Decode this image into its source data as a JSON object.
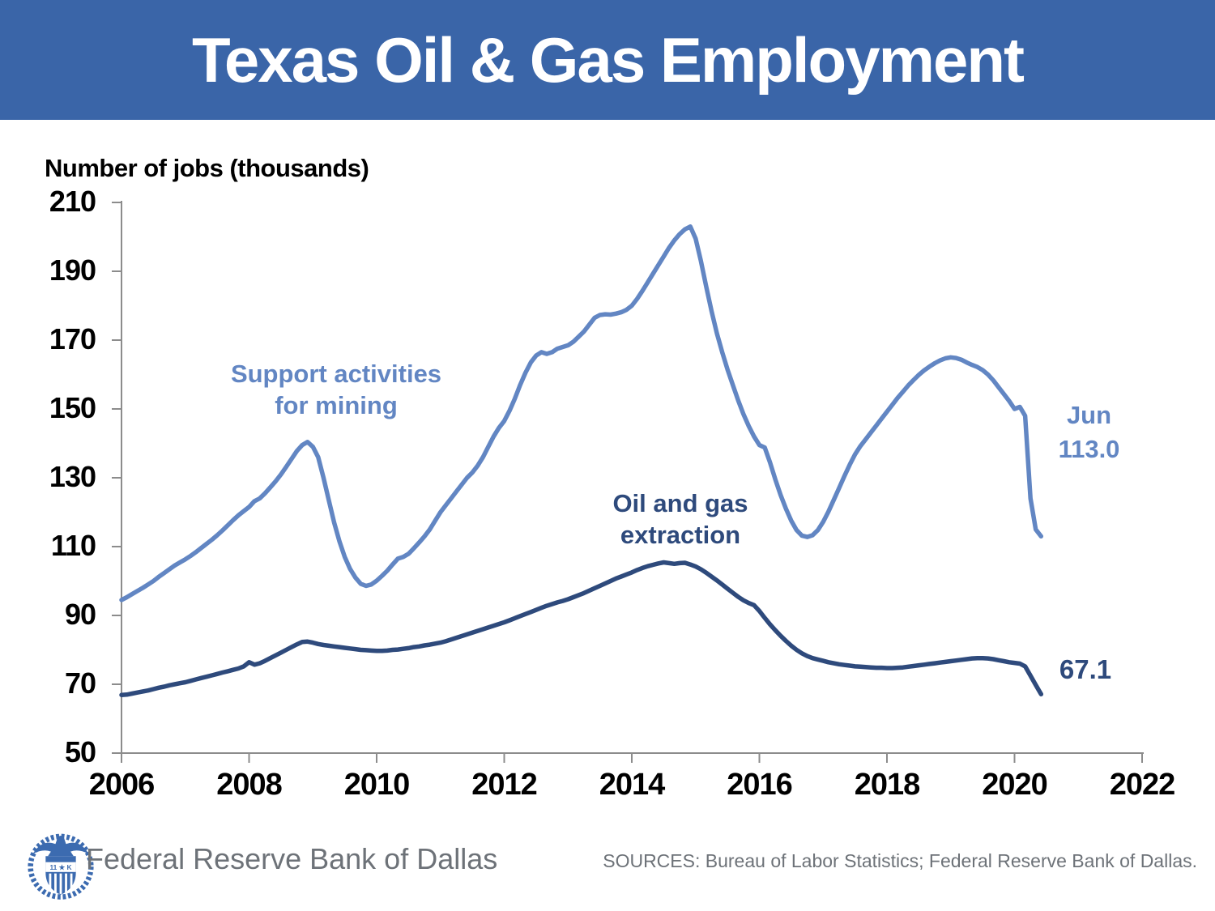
{
  "title": "Texas Oil & Gas Employment",
  "axis_title": "Number of jobs (thousands)",
  "colors": {
    "banner_blue": "#3a65a8",
    "support_line": "#6286c3",
    "extraction_line": "#2e4a7c",
    "axis_gray": "#8c8c8c",
    "tick_label_black": "#000000",
    "footer_gray": "#6d7278",
    "logo_blue": "#3c6bb0"
  },
  "chart_data": {
    "type": "line",
    "title": "Texas Oil & Gas Employment",
    "xlabel": "",
    "ylabel": "Number of jobs (thousands)",
    "xlim": [
      2006,
      2022
    ],
    "ylim": [
      50,
      210
    ],
    "grid": false,
    "legend_position": "inline-annotations",
    "x_ticks": [
      2006,
      2008,
      2010,
      2012,
      2014,
      2016,
      2018,
      2020,
      2022
    ],
    "y_ticks": [
      210,
      190,
      170,
      150,
      130,
      110,
      90,
      70,
      50
    ],
    "x_start_year": 2006,
    "points_per_year": 12,
    "x_end_label": "Jun 2020",
    "series": [
      {
        "name": "Support activities for mining",
        "label_line1": "Support activities",
        "label_line2": "for mining",
        "end_label_line1": "Jun",
        "end_label_line2": "113.0",
        "last_value": 113.0,
        "color": "#6286c3",
        "values": [
          94.5,
          95.3,
          96.2,
          97.1,
          98.0,
          99.0,
          100.0,
          101.2,
          102.3,
          103.4,
          104.5,
          105.4,
          106.3,
          107.3,
          108.4,
          109.6,
          110.8,
          112.0,
          113.3,
          114.7,
          116.2,
          117.7,
          119.1,
          120.3,
          121.5,
          123.2,
          124.0,
          125.5,
          127.2,
          129.0,
          131.0,
          133.2,
          135.5,
          137.8,
          139.5,
          140.4,
          139.0,
          136.0,
          130.0,
          123.5,
          117.0,
          111.5,
          107.0,
          103.5,
          101.0,
          99.2,
          98.6,
          99.0,
          100.1,
          101.5,
          103.0,
          104.8,
          106.5,
          107.0,
          107.9,
          109.5,
          111.2,
          113.0,
          115.0,
          117.5,
          120.0,
          122.0,
          124.0,
          126.0,
          128.0,
          130.0,
          131.5,
          133.5,
          136.0,
          139.0,
          142.0,
          144.5,
          146.5,
          149.5,
          153.0,
          157.0,
          160.5,
          163.5,
          165.5,
          166.5,
          166.0,
          166.5,
          167.5,
          168.0,
          168.5,
          169.5,
          171.0,
          172.5,
          174.5,
          176.5,
          177.3,
          177.5,
          177.4,
          177.7,
          178.1,
          178.8,
          180.0,
          182.0,
          184.3,
          186.8,
          189.3,
          191.8,
          194.3,
          196.8,
          199.0,
          200.8,
          202.2,
          203.0,
          199.5,
          193.0,
          185.5,
          178.5,
          172.0,
          166.5,
          161.5,
          157.0,
          152.5,
          148.5,
          145.0,
          142.0,
          139.5,
          138.8,
          134.5,
          129.5,
          125.0,
          121.0,
          117.5,
          114.8,
          113.2,
          112.8,
          113.3,
          114.8,
          117.2,
          120.2,
          123.6,
          127.0,
          130.5,
          133.8,
          136.8,
          139.2,
          141.2,
          143.2,
          145.2,
          147.2,
          149.2,
          151.2,
          153.2,
          155.0,
          156.8,
          158.4,
          159.9,
          161.2,
          162.3,
          163.3,
          164.1,
          164.7,
          165.0,
          164.8,
          164.3,
          163.5,
          162.8,
          162.2,
          161.3,
          160.0,
          158.3,
          156.3,
          154.3,
          152.3,
          150.0,
          150.6,
          148.0,
          124.0,
          115.0,
          113.0
        ]
      },
      {
        "name": "Oil and gas extraction",
        "label_line1": "Oil and gas",
        "label_line2": "extraction",
        "end_label_line1": "67.1",
        "end_label_line2": "",
        "last_value": 67.1,
        "color": "#2e4a7c",
        "values": [
          66.9,
          67.0,
          67.3,
          67.6,
          67.9,
          68.2,
          68.6,
          69.0,
          69.3,
          69.7,
          70.0,
          70.3,
          70.6,
          71.0,
          71.4,
          71.8,
          72.2,
          72.6,
          73.0,
          73.4,
          73.8,
          74.2,
          74.6,
          75.2,
          76.4,
          75.7,
          76.1,
          76.8,
          77.6,
          78.4,
          79.2,
          80.0,
          80.8,
          81.6,
          82.3,
          82.4,
          82.1,
          81.7,
          81.4,
          81.2,
          81.0,
          80.8,
          80.6,
          80.4,
          80.2,
          80.0,
          79.9,
          79.8,
          79.7,
          79.7,
          79.8,
          80.0,
          80.1,
          80.3,
          80.5,
          80.8,
          81.0,
          81.3,
          81.5,
          81.8,
          82.1,
          82.5,
          83.0,
          83.5,
          84.0,
          84.5,
          85.0,
          85.5,
          86.0,
          86.5,
          87.0,
          87.5,
          88.0,
          88.6,
          89.2,
          89.8,
          90.4,
          91.0,
          91.6,
          92.2,
          92.8,
          93.3,
          93.8,
          94.2,
          94.7,
          95.3,
          95.9,
          96.5,
          97.2,
          97.9,
          98.6,
          99.3,
          100.0,
          100.7,
          101.3,
          101.9,
          102.5,
          103.2,
          103.8,
          104.3,
          104.7,
          105.1,
          105.4,
          105.2,
          105.0,
          105.2,
          105.3,
          104.8,
          104.2,
          103.4,
          102.4,
          101.3,
          100.2,
          99.0,
          97.8,
          96.6,
          95.4,
          94.4,
          93.6,
          93.0,
          91.3,
          89.3,
          87.4,
          85.7,
          84.1,
          82.6,
          81.2,
          80.0,
          79.0,
          78.2,
          77.6,
          77.2,
          76.8,
          76.4,
          76.1,
          75.8,
          75.6,
          75.4,
          75.2,
          75.1,
          75.0,
          74.9,
          74.8,
          74.8,
          74.7,
          74.7,
          74.8,
          74.9,
          75.1,
          75.3,
          75.5,
          75.7,
          75.9,
          76.1,
          76.3,
          76.5,
          76.7,
          76.9,
          77.1,
          77.3,
          77.5,
          77.6,
          77.6,
          77.5,
          77.3,
          77.0,
          76.7,
          76.4,
          76.2,
          76.0,
          75.2,
          72.5,
          69.8,
          67.1
        ]
      }
    ]
  },
  "footer": {
    "brand": "Federal Reserve Bank of Dallas",
    "sources": "SOURCES: Bureau of Labor Statistics; Federal Reserve Bank of Dallas.",
    "logo_band_text": "11 ★ K"
  }
}
